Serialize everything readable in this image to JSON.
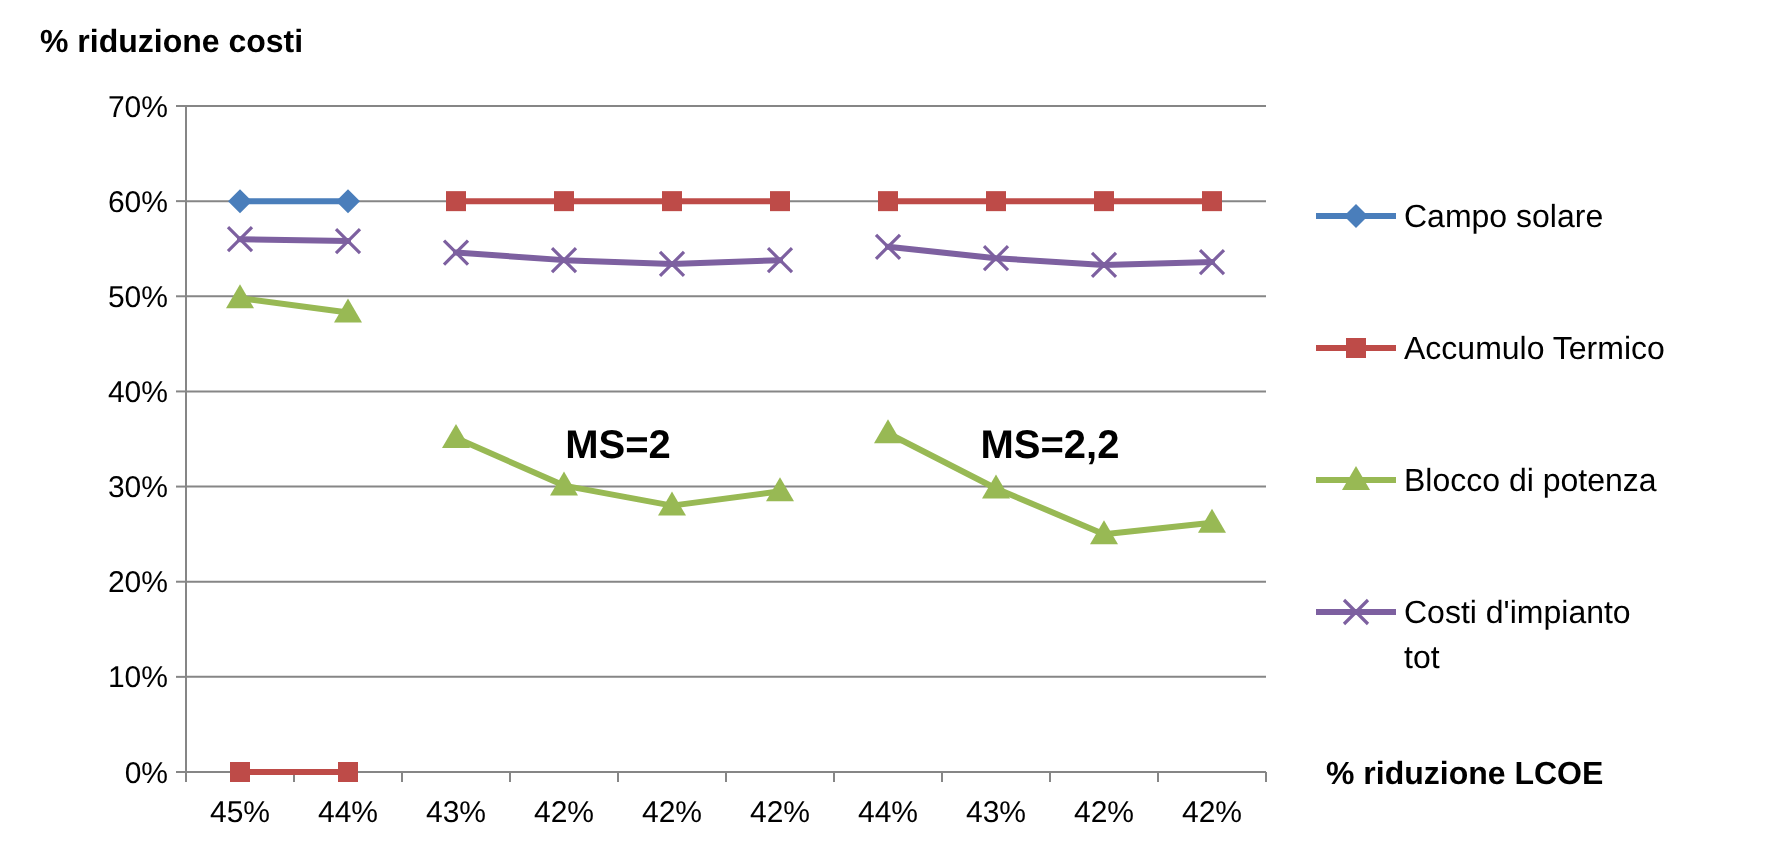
{
  "chart_data": {
    "type": "line",
    "ylabel": "% riduzione costi",
    "xlabel": "% riduzione LCOE",
    "categories": [
      "45%",
      "44%",
      "43%",
      "42%",
      "42%",
      "42%",
      "44%",
      "43%",
      "42%",
      "42%"
    ],
    "ylim": [
      0,
      70
    ],
    "yticks": [
      {
        "value": 0,
        "label": "0%"
      },
      {
        "value": 10,
        "label": "10%"
      },
      {
        "value": 20,
        "label": "20%"
      },
      {
        "value": 30,
        "label": "30%"
      },
      {
        "value": 40,
        "label": "40%"
      },
      {
        "value": 50,
        "label": "50%"
      },
      {
        "value": 60,
        "label": "60%"
      },
      {
        "value": 70,
        "label": "70%"
      }
    ],
    "grid": "y",
    "legend": "right",
    "annotations": [
      "MS=2",
      "MS=2,2"
    ],
    "series": [
      {
        "name": "Campo solare",
        "color": "#4a7ebb",
        "marker": "diamond",
        "values": [
          60,
          60,
          null,
          null,
          null,
          null,
          null,
          null,
          null,
          null
        ]
      },
      {
        "name": "Accumulo Termico",
        "color": "#be4b48",
        "marker": "square",
        "values": [
          0,
          0,
          null,
          null,
          null,
          null,
          null,
          null,
          null,
          null
        ]
      },
      {
        "name": "Blocco di potenza",
        "color": "#98b954",
        "marker": "triangle",
        "values": [
          49.8,
          48.3,
          null,
          null,
          null,
          null,
          null,
          null,
          null,
          null
        ]
      },
      {
        "name": "Costi d'impianto tot",
        "color": "#7d60a0",
        "marker": "cross",
        "values": [
          56,
          55.8,
          null,
          null,
          null,
          null,
          null,
          null,
          null,
          null
        ]
      },
      {
        "color": "#be4b48",
        "marker": "square",
        "values": [
          null,
          null,
          60,
          60,
          60,
          60,
          null,
          null,
          null,
          null
        ]
      },
      {
        "color": "#98b954",
        "marker": "triangle",
        "values": [
          null,
          null,
          35.1,
          30.1,
          28,
          29.5,
          null,
          null,
          null,
          null
        ]
      },
      {
        "color": "#7d60a0",
        "marker": "cross",
        "values": [
          null,
          null,
          54.6,
          53.8,
          53.4,
          53.8,
          null,
          null,
          null,
          null
        ]
      },
      {
        "color": "#be4b48",
        "marker": "square",
        "values": [
          null,
          null,
          null,
          null,
          null,
          null,
          60,
          60,
          60,
          60
        ]
      },
      {
        "color": "#98b954",
        "marker": "triangle",
        "values": [
          null,
          null,
          null,
          null,
          null,
          null,
          35.6,
          29.8,
          25,
          26.2
        ]
      },
      {
        "color": "#7d60a0",
        "marker": "cross",
        "values": [
          null,
          null,
          null,
          null,
          null,
          null,
          55.2,
          54,
          53.3,
          53.6
        ]
      }
    ]
  }
}
